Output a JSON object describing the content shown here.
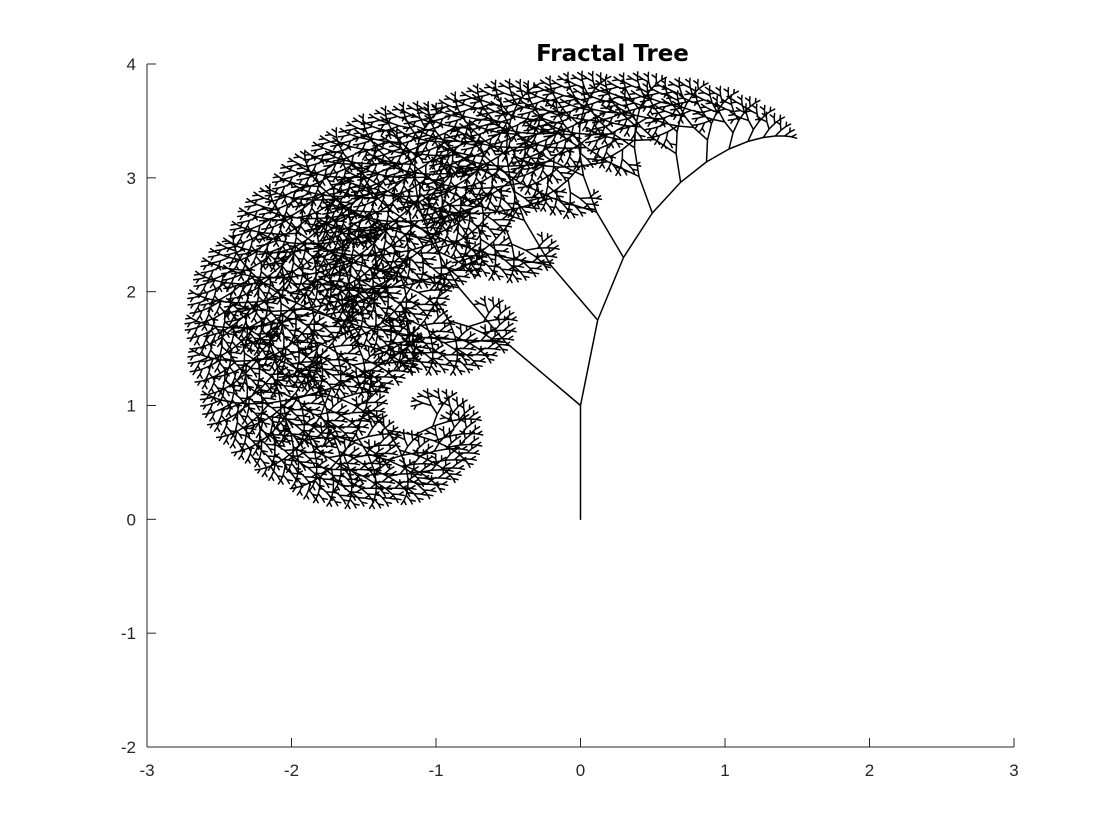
{
  "chart_data": {
    "type": "line",
    "title": "Fractal Tree",
    "xlabel": "",
    "ylabel": "",
    "xlim": [
      -3,
      3
    ],
    "ylim": [
      -2,
      4
    ],
    "xticks": [
      -3,
      -2,
      -1,
      0,
      1,
      2,
      3
    ],
    "yticks": [
      -2,
      -1,
      0,
      1,
      2,
      3,
      4
    ],
    "grid": false,
    "series": [
      {
        "trunk": {
          "x": [
            0,
            0
          ],
          "y": [
            0,
            1
          ]
        },
        "depth": 12,
        "scale": 0.76,
        "angles_deg": [
          27,
          -25
        ],
        "bend_deg": 16,
        "color": "#000000"
      }
    ]
  },
  "style": {
    "axis_color": "#262626",
    "line_color": "#000000",
    "background": "#ffffff"
  }
}
